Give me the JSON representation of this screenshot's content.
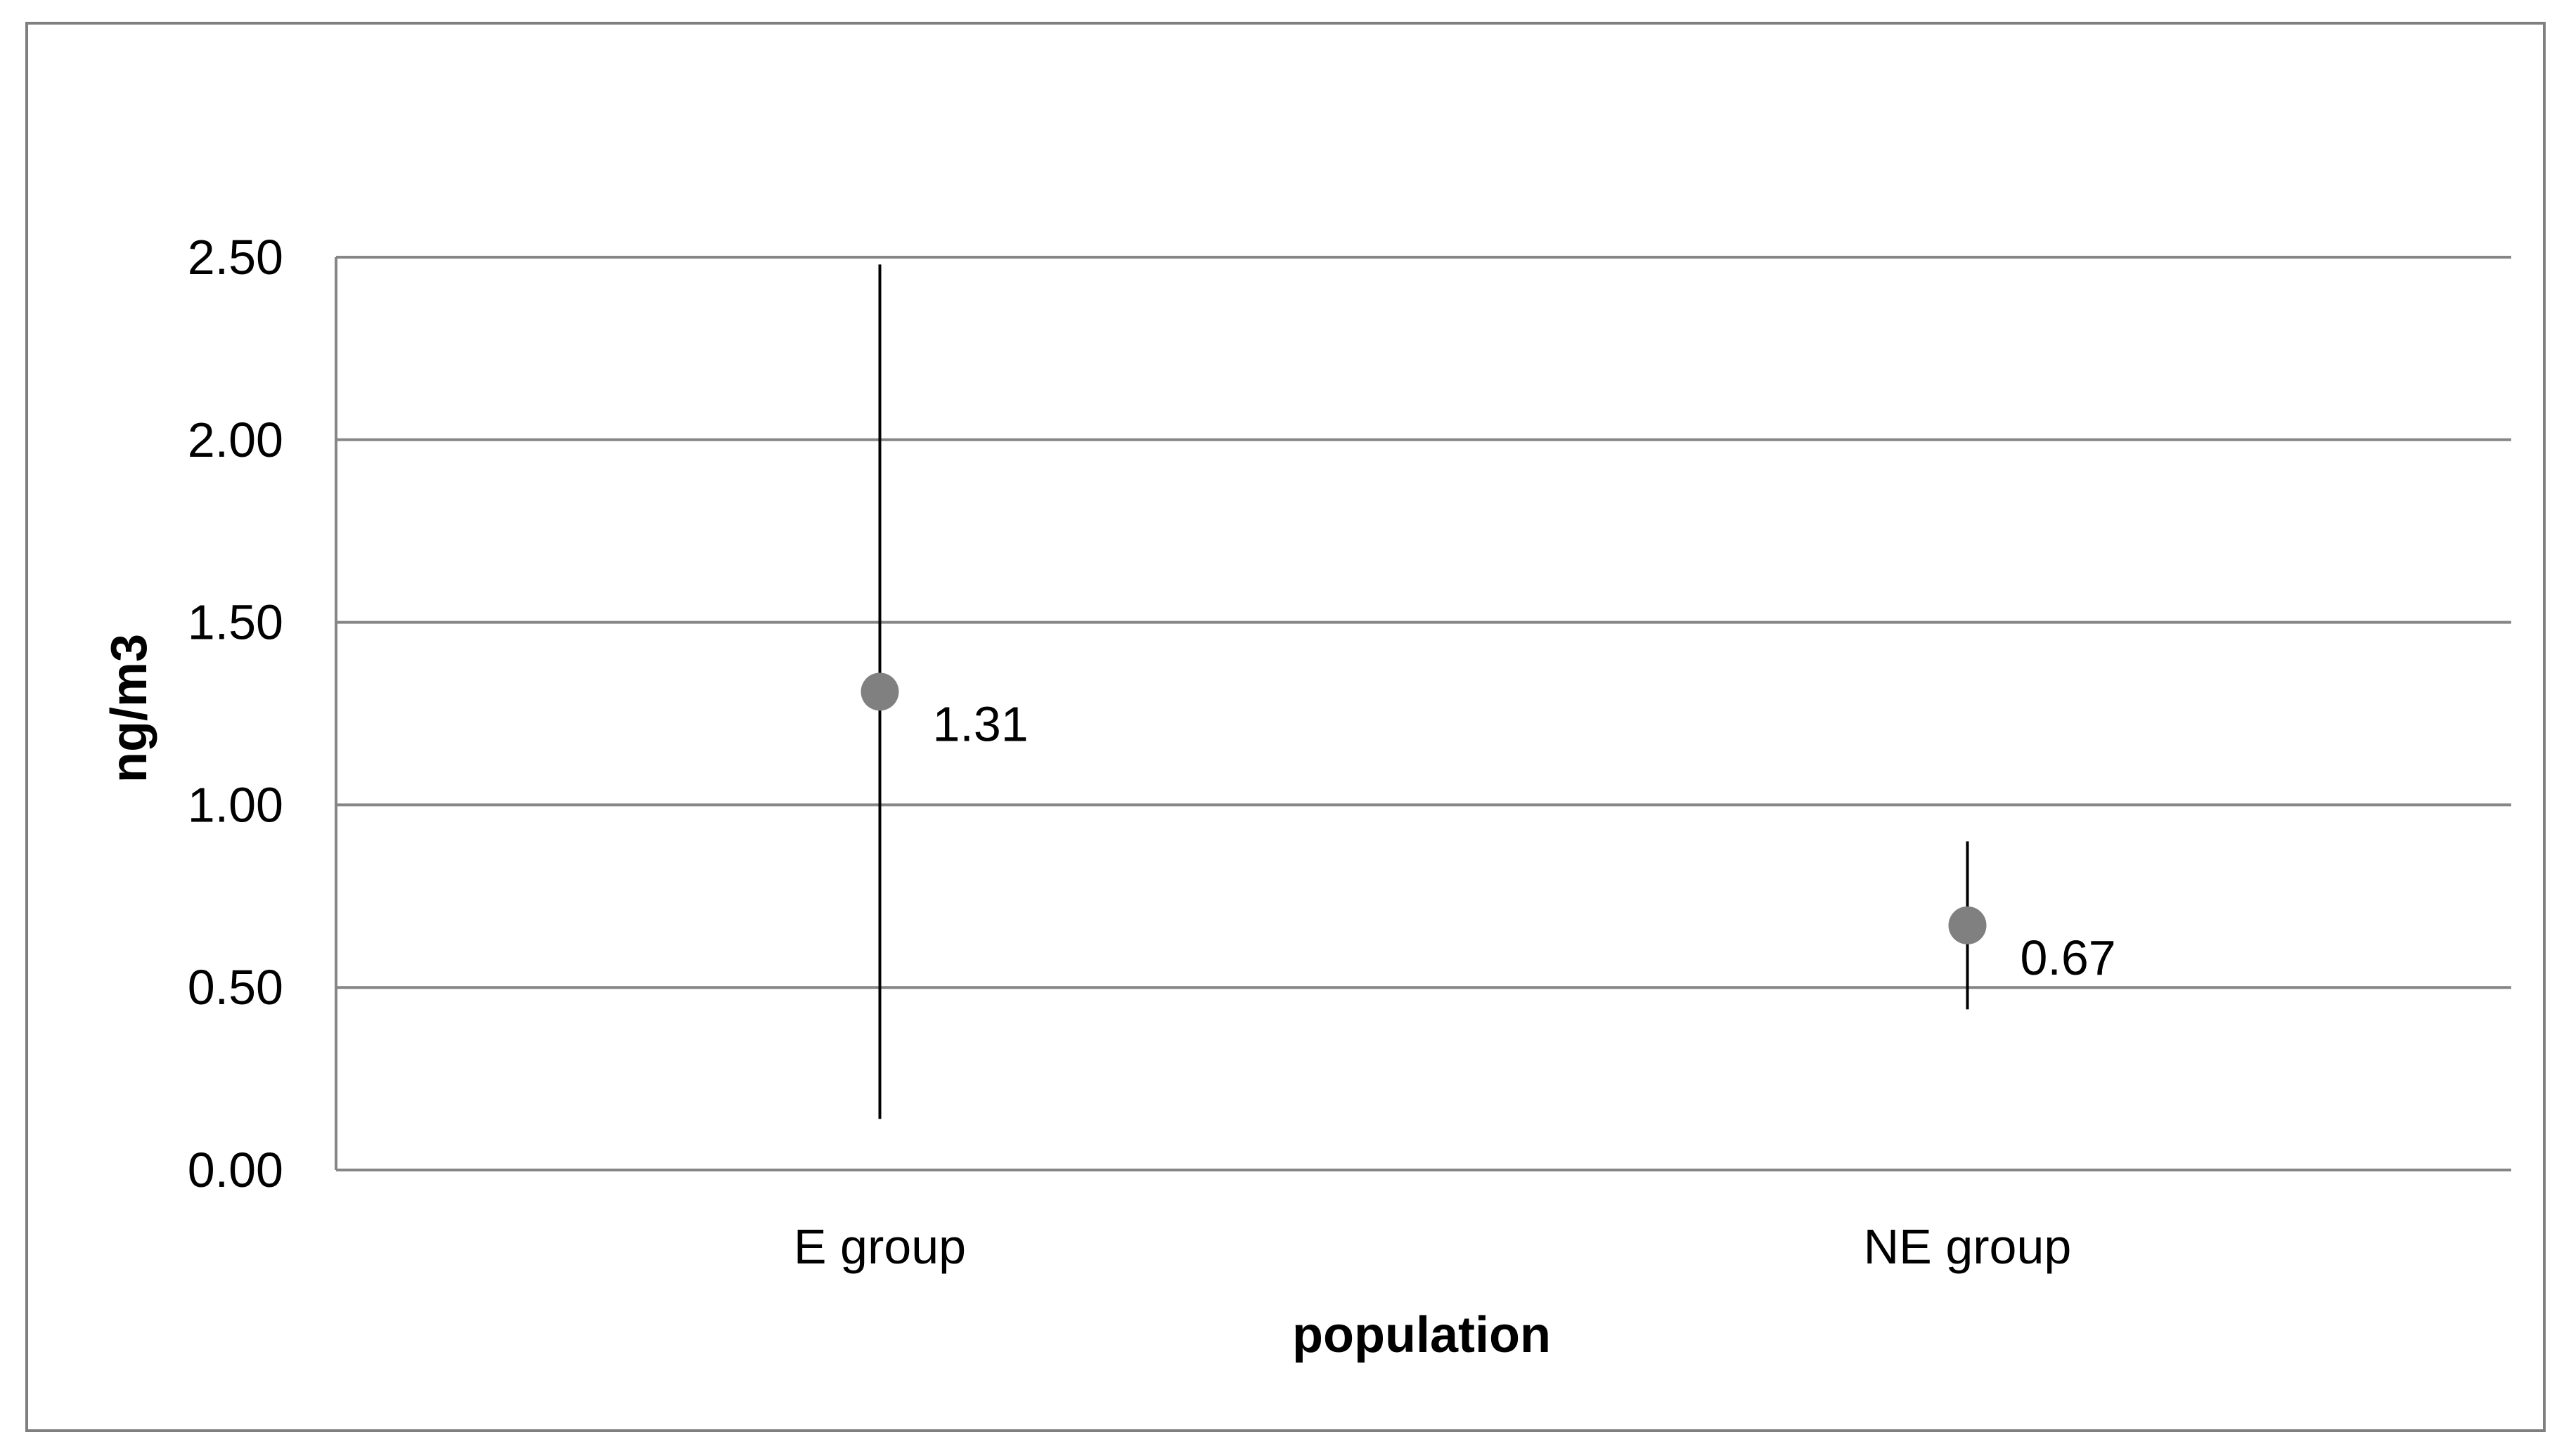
{
  "chart_data": {
    "type": "scatter",
    "title": "",
    "xlabel": "population",
    "ylabel": "ng/m3",
    "categories": [
      "E group",
      "NE group"
    ],
    "series": [
      {
        "values": [
          1.31,
          0.67
        ],
        "error_low": [
          0.14,
          0.44
        ],
        "error_high": [
          2.48,
          0.9
        ],
        "data_labels": [
          "1.31",
          "0.67"
        ]
      }
    ],
    "ylim": [
      0,
      2.5
    ],
    "yticks": [
      0,
      0.5,
      1,
      1.5,
      2,
      2.5
    ],
    "ytick_labels": [
      "0.00",
      "0.50",
      "1.00",
      "1.50",
      "2.00",
      "2.50"
    ],
    "grid": "horizontal",
    "legend": "none",
    "marker_color": "#808080",
    "gridline_color": "#868686",
    "errorbar_color": "#000000"
  }
}
